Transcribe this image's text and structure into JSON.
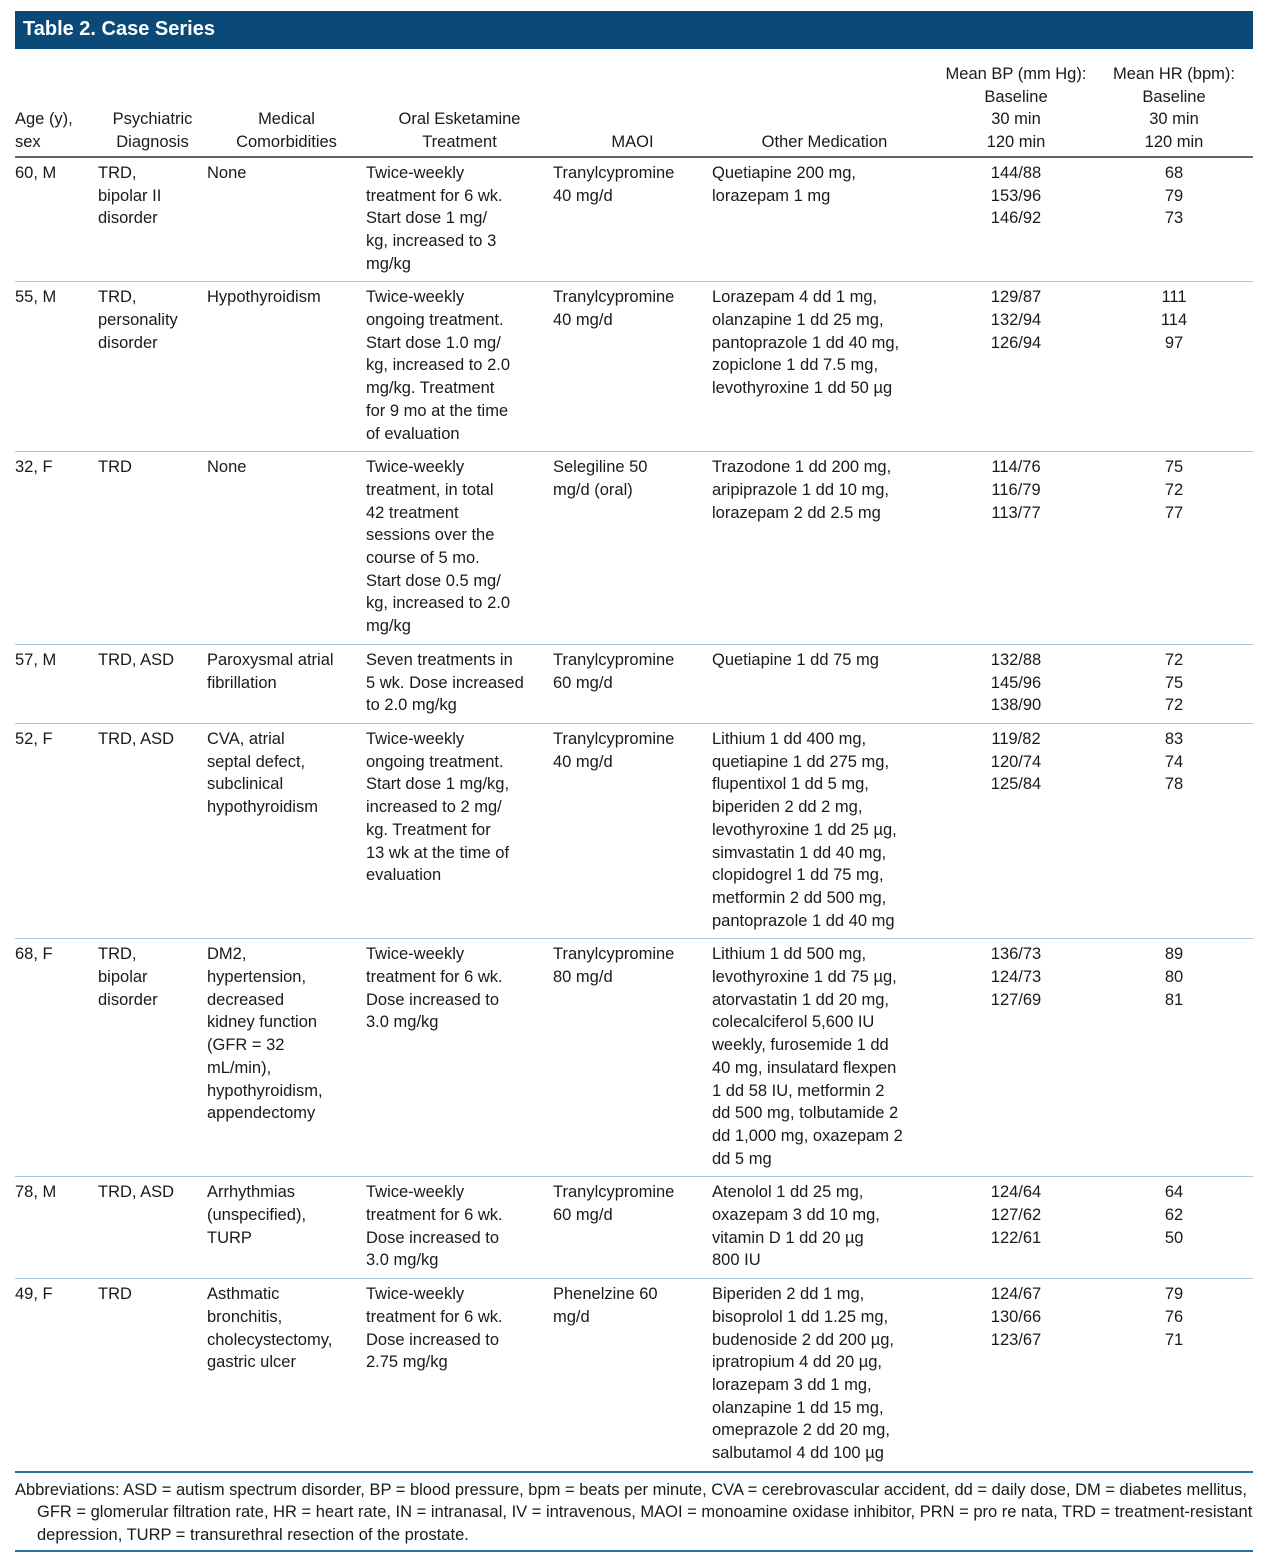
{
  "title": "Table 2. Case Series",
  "colors": {
    "title_bar": "#0b4a78",
    "row_divider": "#a9c8e0"
  },
  "columns": [
    "Age (y),\nsex",
    "Psychiatric\nDiagnosis",
    "Medical\nComorbidities",
    "Oral Esketamine\nTreatment",
    "MAOI",
    "Other Medication",
    "Mean BP (mm Hg):\nBaseline\n30 min\n120 min",
    "Mean HR (bpm):\nBaseline\n30 min\n120 min"
  ],
  "rows": [
    [
      "60, M",
      "TRD,\nbipolar II\ndisorder",
      "None",
      "Twice-weekly\ntreatment for 6 wk.\nStart dose 1 mg/\nkg, increased to 3\nmg/kg",
      "Tranylcypromine\n40 mg/d",
      "Quetiapine 200 mg,\nlorazepam 1 mg",
      "144/88\n153/96\n146/92",
      "68\n79\n73"
    ],
    [
      "55, M",
      "TRD,\npersonality\ndisorder",
      "Hypothyroidism",
      "Twice-weekly\nongoing treatment.\nStart dose 1.0 mg/\nkg, increased to 2.0\nmg/kg. Treatment\nfor 9 mo at the time\nof evaluation",
      "Tranylcypromine\n40 mg/d",
      "Lorazepam 4 dd 1 mg,\nolanzapine 1 dd 25 mg,\npantoprazole 1 dd 40 mg,\nzopiclone 1 dd 7.5 mg,\nlevothyroxine 1 dd 50 µg",
      "129/87\n132/94\n126/94",
      "111\n114\n97"
    ],
    [
      "32, F",
      "TRD",
      "None",
      "Twice-weekly\ntreatment, in total\n42 treatment\nsessions over the\ncourse of 5 mo.\nStart dose 0.5 mg/\nkg, increased to 2.0\nmg/kg",
      "Selegiline 50\nmg/d (oral)",
      "Trazodone 1 dd 200 mg,\naripiprazole 1 dd 10 mg,\nlorazepam 2 dd 2.5 mg",
      "114/76\n116/79\n113/77",
      "75\n72\n77"
    ],
    [
      "57, M",
      "TRD, ASD",
      "Paroxysmal atrial\nfibrillation",
      "Seven treatments in\n5 wk. Dose increased\nto 2.0 mg/kg",
      "Tranylcypromine\n60 mg/d",
      "Quetiapine 1 dd 75 mg",
      "132/88\n145/96\n138/90",
      "72\n75\n72"
    ],
    [
      "52, F",
      "TRD, ASD",
      "CVA, atrial\nseptal defect,\nsubclinical\nhypothyroidism",
      "Twice-weekly\nongoing treatment.\nStart dose 1 mg/kg,\nincreased to 2 mg/\nkg. Treatment for\n13 wk at the time of\nevaluation",
      "Tranylcypromine\n40 mg/d",
      "Lithium 1 dd 400 mg,\nquetiapine 1 dd 275 mg,\nflupentixol 1 dd 5 mg,\nbiperiden 2 dd 2 mg,\nlevothyroxine 1 dd 25 µg,\nsimvastatin 1 dd 40 mg,\nclopidogrel 1 dd 75 mg,\nmetformin 2 dd 500 mg,\npantoprazole 1 dd 40 mg",
      "119/82\n120/74\n125/84",
      "83\n74\n78"
    ],
    [
      "68, F",
      "TRD,\nbipolar\ndisorder",
      "DM2,\nhypertension,\ndecreased\nkidney function\n(GFR = 32\nmL/min),\nhypothyroidism,\nappendectomy",
      "Twice-weekly\ntreatment for 6 wk.\nDose increased to\n3.0 mg/kg",
      "Tranylcypromine\n80 mg/d",
      "Lithium 1 dd 500 mg,\nlevothyroxine 1 dd 75 µg,\natorvastatin 1 dd 20 mg,\ncolecalciferol 5,600 IU\nweekly, furosemide 1 dd\n40 mg, insulatard flexpen\n1 dd 58 IU, metformin 2\ndd 500 mg, tolbutamide 2\ndd 1,000 mg, oxazepam 2\ndd 5 mg",
      "136/73\n124/73\n127/69",
      "89\n80\n81"
    ],
    [
      "78, M",
      "TRD, ASD",
      "Arrhythmias\n(unspecified),\nTURP",
      "Twice-weekly\ntreatment for 6 wk.\nDose increased to\n3.0 mg/kg",
      "Tranylcypromine\n60 mg/d",
      "Atenolol 1 dd 25 mg,\noxazepam 3 dd 10 mg,\nvitamin D 1 dd 20 µg\n800 IU",
      "124/64\n127/62\n122/61",
      "64\n62\n50"
    ],
    [
      "49, F",
      "TRD",
      "Asthmatic\nbronchitis,\ncholecystectomy,\ngastric ulcer",
      "Twice-weekly\ntreatment for 6 wk.\nDose increased to\n2.75 mg/kg",
      "Phenelzine 60\nmg/d",
      "Biperiden 2 dd 1 mg,\nbisoprolol 1 dd 1.25 mg,\nbudenoside 2 dd 200 µg,\nipratropium 4 dd 20 µg,\nlorazepam 3 dd 1 mg,\nolanzapine 1 dd 15 mg,\nomeprazole 2 dd 20 mg,\nsalbutamol 4 dd 100 µg",
      "124/67\n130/66\n123/67",
      "79\n76\n71"
    ]
  ],
  "footnote": "Abbreviations: ASD = autism spectrum disorder, BP = blood pressure, bpm = beats per minute, CVA = cerebrovascular accident, dd = daily dose, DM = diabetes mellitus, GFR = glomerular filtration rate, HR = heart rate, IN = intranasal, IV = intravenous, MAOI = monoamine oxidase inhibitor, PRN = pro re nata, TRD = treatment-resistant depression, TURP = transurethral resection of the prostate."
}
